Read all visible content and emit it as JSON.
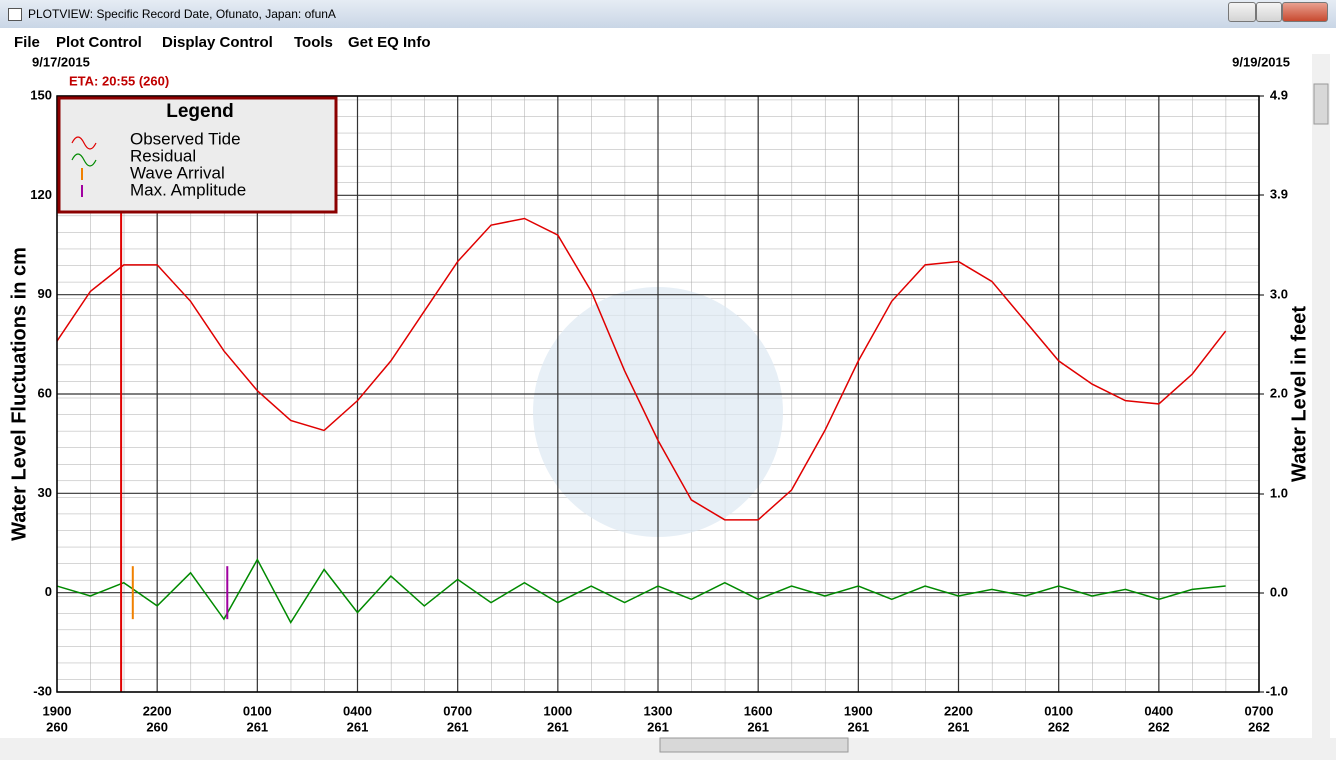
{
  "window": {
    "title": "PLOTVIEW: Specific Record Date, Ofunato, Japan: ofunA"
  },
  "menu": [
    "File",
    "Plot Control",
    "Display Control",
    "Tools",
    "Get EQ Info"
  ],
  "chart_data": {
    "type": "line",
    "start_date": "9/17/2015",
    "end_date": "9/19/2015",
    "eta_label": "ETA: 20:55 (260)",
    "eta_x": 1.92,
    "y_label": "Water Level Fluctuations in cm",
    "y2_label": "Water Level in feet",
    "legend_title": "Legend",
    "x": [
      0,
      1,
      2,
      3,
      4,
      5,
      6,
      7,
      8,
      9,
      10,
      11,
      12,
      13,
      14,
      15,
      16,
      17,
      18,
      19,
      20,
      21,
      22,
      23,
      24,
      25,
      26,
      27,
      28,
      29,
      30,
      31,
      32,
      33,
      34,
      35
    ],
    "series": [
      {
        "name": "Observed Tide",
        "color": "#e00000",
        "values": [
          76,
          91,
          99,
          99,
          88,
          73,
          61,
          52,
          49,
          58,
          70,
          85,
          100,
          111,
          113,
          108,
          91,
          67,
          46,
          28,
          22,
          22,
          31,
          49,
          70,
          88,
          99,
          100,
          94,
          82,
          70,
          63,
          58,
          57,
          66,
          79
        ]
      },
      {
        "name": "Residual",
        "color": "#008a00",
        "values": [
          2,
          -1,
          3,
          -4,
          6,
          -8,
          10,
          -9,
          7,
          -6,
          5,
          -4,
          4,
          -3,
          3,
          -3,
          2,
          -3,
          2,
          -2,
          3,
          -2,
          2,
          -1,
          2,
          -2,
          2,
          -1,
          1,
          -1,
          2,
          -1,
          1,
          -2,
          1,
          2
        ]
      }
    ],
    "markers": [
      {
        "name": "Wave Arrival",
        "color": "#f08000",
        "x": 2.27
      },
      {
        "name": "Max. Amplitude",
        "color": "#a000a0",
        "x": 5.1
      }
    ],
    "xlim": [
      0,
      36
    ],
    "xticks": [
      {
        "value": 0,
        "label": "1900"
      },
      {
        "value": 3,
        "label": "2200"
      },
      {
        "value": 6,
        "label": "0100"
      },
      {
        "value": 9,
        "label": "0400"
      },
      {
        "value": 12,
        "label": "0700"
      },
      {
        "value": 15,
        "label": "1000"
      },
      {
        "value": 18,
        "label": "1300"
      },
      {
        "value": 21,
        "label": "1600"
      },
      {
        "value": 24,
        "label": "1900"
      },
      {
        "value": 27,
        "label": "2200"
      },
      {
        "value": 30,
        "label": "0100"
      },
      {
        "value": 33,
        "label": "0400"
      },
      {
        "value": 36,
        "label": "0700"
      }
    ],
    "xtick_days": [
      "260",
      "260",
      "261",
      "261",
      "261",
      "261",
      "261",
      "261",
      "261",
      "261",
      "262",
      "262",
      "262"
    ],
    "ylim": [
      -30,
      150
    ],
    "yticks": [
      150,
      120,
      90,
      60,
      30,
      0,
      -30
    ],
    "y2lim": [
      -0.98,
      4.92
    ],
    "y2ticks": [
      {
        "value": 4.92,
        "label": "4.9"
      },
      {
        "value": 3.94,
        "label": "3.9"
      },
      {
        "value": 2.95,
        "label": "3.0"
      },
      {
        "value": 1.97,
        "label": "2.0"
      },
      {
        "value": 0.98,
        "label": "1.0"
      },
      {
        "value": 0,
        "label": "0.0"
      },
      {
        "value": -0.98,
        "label": "-1.0"
      }
    ],
    "grid": true
  }
}
